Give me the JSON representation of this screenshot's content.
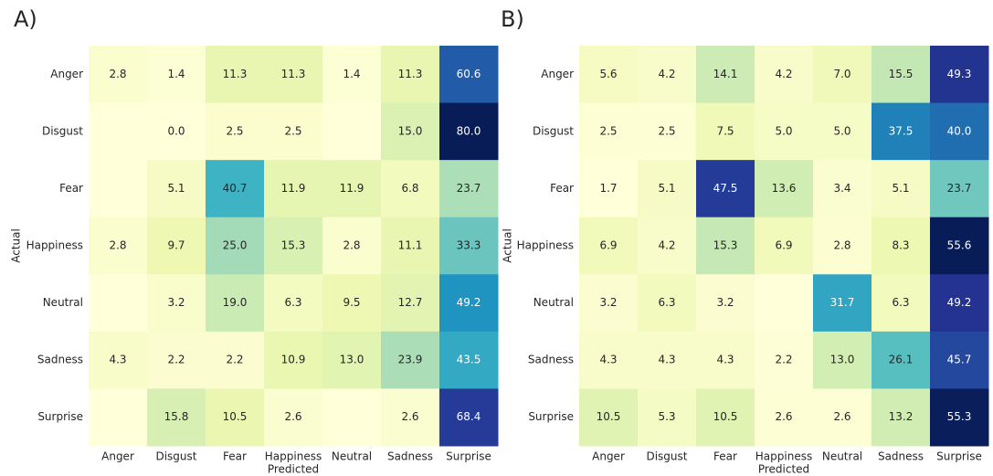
{
  "chart_data": [
    {
      "type": "heatmap",
      "title": "A)",
      "xlabel": "Predicted",
      "ylabel": "Actual",
      "x_categories": [
        "Anger",
        "Disgust",
        "Fear",
        "Happiness",
        "Neutral",
        "Sadness",
        "Surprise"
      ],
      "y_categories": [
        "Anger",
        "Disgust",
        "Fear",
        "Happiness",
        "Neutral",
        "Sadness",
        "Surprise"
      ],
      "colormap": [
        "#ffffd9",
        "#edf8b1",
        "#c7e9b4",
        "#7fcdbb",
        "#41b6c4",
        "#1d91c0",
        "#225ea8",
        "#253494",
        "#081d58"
      ],
      "values": [
        [
          2.8,
          1.4,
          11.3,
          11.3,
          1.4,
          11.3,
          60.6
        ],
        [
          null,
          0,
          2.5,
          2.5,
          null,
          15,
          80
        ],
        [
          null,
          5.1,
          40.7,
          11.9,
          11.9,
          6.8,
          23.7
        ],
        [
          2.8,
          9.7,
          25,
          15.3,
          2.8,
          11.1,
          33.3
        ],
        [
          null,
          3.2,
          19,
          6.3,
          9.5,
          12.7,
          49.2
        ],
        [
          4.3,
          2.2,
          2.2,
          10.9,
          13,
          23.9,
          43.5
        ],
        [
          null,
          15.8,
          10.5,
          2.6,
          null,
          2.6,
          68.4
        ]
      ],
      "value_labels": [
        [
          "2.8",
          "1.4",
          "11.3",
          "11.3",
          "1.4",
          "11.3",
          "60.6"
        ],
        [
          null,
          "0.0",
          "2.5",
          "2.5",
          null,
          "15.0",
          "80.0"
        ],
        [
          null,
          "5.1",
          "40.7",
          "11.9",
          "11.9",
          "6.8",
          "23.7"
        ],
        [
          "2.8",
          "9.7",
          "25.0",
          "15.3",
          "2.8",
          "11.1",
          "33.3"
        ],
        [
          null,
          "3.2",
          "19.0",
          "6.3",
          "9.5",
          "12.7",
          "49.2"
        ],
        [
          "4.3",
          "2.2",
          "2.2",
          "10.9",
          "13.0",
          "23.9",
          "43.5"
        ],
        [
          null,
          "15.8",
          "10.5",
          "2.6",
          null,
          "2.6",
          "68.4"
        ]
      ]
    },
    {
      "type": "heatmap",
      "title": "B)",
      "xlabel": "Predicted",
      "ylabel": "Actual",
      "x_categories": [
        "Anger",
        "Disgust",
        "Fear",
        "Happiness",
        "Neutral",
        "Sadness",
        "Surprise"
      ],
      "y_categories": [
        "Anger",
        "Disgust",
        "Fear",
        "Happiness",
        "Neutral",
        "Sadness",
        "Surprise"
      ],
      "colormap": [
        "#ffffd9",
        "#edf8b1",
        "#c7e9b4",
        "#7fcdbb",
        "#41b6c4",
        "#1d91c0",
        "#225ea8",
        "#253494",
        "#081d58"
      ],
      "values": [
        [
          5.6,
          4.2,
          14.1,
          4.2,
          7,
          15.5,
          49.3
        ],
        [
          2.5,
          2.5,
          7.5,
          5,
          5,
          37.5,
          40
        ],
        [
          1.7,
          5.1,
          47.5,
          13.6,
          3.4,
          5.1,
          23.7
        ],
        [
          6.9,
          4.2,
          15.3,
          6.9,
          2.8,
          8.3,
          55.6
        ],
        [
          3.2,
          6.3,
          3.2,
          null,
          31.7,
          6.3,
          49.2
        ],
        [
          4.3,
          4.3,
          4.3,
          2.2,
          13,
          26.1,
          45.7
        ],
        [
          10.5,
          5.3,
          10.5,
          2.6,
          2.6,
          13.2,
          55.3
        ]
      ],
      "value_labels": [
        [
          "5.6",
          "4.2",
          "14.1",
          "4.2",
          "7.0",
          "15.5",
          "49.3"
        ],
        [
          "2.5",
          "2.5",
          "7.5",
          "5.0",
          "5.0",
          "37.5",
          "40.0"
        ],
        [
          "1.7",
          "5.1",
          "47.5",
          "13.6",
          "3.4",
          "5.1",
          "23.7"
        ],
        [
          "6.9",
          "4.2",
          "15.3",
          "6.9",
          "2.8",
          "8.3",
          "55.6"
        ],
        [
          "3.2",
          "6.3",
          "3.2",
          null,
          "31.7",
          "6.3",
          "49.2"
        ],
        [
          "4.3",
          "4.3",
          "4.3",
          "2.2",
          "13.0",
          "26.1",
          "45.7"
        ],
        [
          "10.5",
          "5.3",
          "10.5",
          "2.6",
          "2.6",
          "13.2",
          "55.3"
        ]
      ]
    }
  ]
}
